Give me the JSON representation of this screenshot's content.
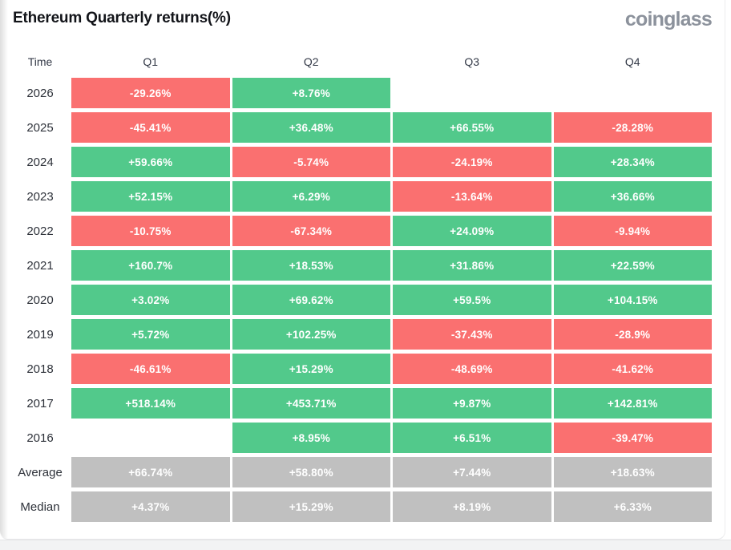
{
  "header": {
    "title": "Ethereum Quarterly returns(%)",
    "brand": "coinglass"
  },
  "colors": {
    "positive": "#52c98b",
    "negative": "#fa7070",
    "neutral": "#c0c0c0"
  },
  "chart_data": {
    "type": "heatmap",
    "title": "Ethereum Quarterly returns(%)",
    "columns": [
      "Time",
      "Q1",
      "Q2",
      "Q3",
      "Q4"
    ],
    "rows": [
      {
        "label": "2026",
        "summary": false,
        "values": [
          "-29.26%",
          "+8.76%",
          null,
          null
        ]
      },
      {
        "label": "2025",
        "summary": false,
        "values": [
          "-45.41%",
          "+36.48%",
          "+66.55%",
          "-28.28%"
        ]
      },
      {
        "label": "2024",
        "summary": false,
        "values": [
          "+59.66%",
          "-5.74%",
          "-24.19%",
          "+28.34%"
        ]
      },
      {
        "label": "2023",
        "summary": false,
        "values": [
          "+52.15%",
          "+6.29%",
          "-13.64%",
          "+36.66%"
        ]
      },
      {
        "label": "2022",
        "summary": false,
        "values": [
          "-10.75%",
          "-67.34%",
          "+24.09%",
          "-9.94%"
        ]
      },
      {
        "label": "2021",
        "summary": false,
        "values": [
          "+160.7%",
          "+18.53%",
          "+31.86%",
          "+22.59%"
        ]
      },
      {
        "label": "2020",
        "summary": false,
        "values": [
          "+3.02%",
          "+69.62%",
          "+59.5%",
          "+104.15%"
        ]
      },
      {
        "label": "2019",
        "summary": false,
        "values": [
          "+5.72%",
          "+102.25%",
          "-37.43%",
          "-28.9%"
        ]
      },
      {
        "label": "2018",
        "summary": false,
        "values": [
          "-46.61%",
          "+15.29%",
          "-48.69%",
          "-41.62%"
        ]
      },
      {
        "label": "2017",
        "summary": false,
        "values": [
          "+518.14%",
          "+453.71%",
          "+9.87%",
          "+142.81%"
        ]
      },
      {
        "label": "2016",
        "summary": false,
        "values": [
          null,
          "+8.95%",
          "+6.51%",
          "-39.47%"
        ]
      },
      {
        "label": "Average",
        "summary": true,
        "values": [
          "+66.74%",
          "+58.80%",
          "+7.44%",
          "+18.63%"
        ]
      },
      {
        "label": "Median",
        "summary": true,
        "values": [
          "+4.37%",
          "+15.29%",
          "+8.19%",
          "+6.33%"
        ]
      }
    ]
  }
}
